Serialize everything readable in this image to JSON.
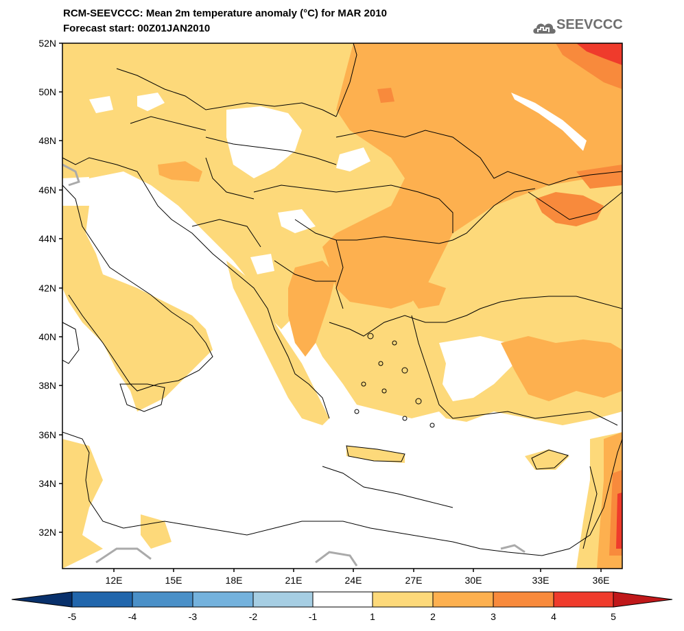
{
  "header": {
    "title_line1": "RCM-SEEVCCC: Mean 2m temperature anomaly (°C) for MAR 2010",
    "title_line2": "Forecast start: 00Z01JAN2010",
    "logo_text": "SEEVCCC",
    "logo_icon": "cloud-icon"
  },
  "map": {
    "lat_labels": [
      "52N",
      "50N",
      "48N",
      "46N",
      "44N",
      "42N",
      "40N",
      "38N",
      "36N",
      "34N",
      "32N"
    ],
    "lon_labels": [
      "12E",
      "15E",
      "18E",
      "21E",
      "24E",
      "27E",
      "30E",
      "33E",
      "36E"
    ],
    "lat_values": [
      52,
      50,
      48,
      46,
      44,
      42,
      40,
      38,
      36,
      34,
      32
    ],
    "lon_values": [
      12,
      15,
      18,
      21,
      24,
      27,
      30,
      33,
      36
    ]
  },
  "colorbar": {
    "labels": [
      "-5",
      "-4",
      "-3",
      "-2",
      "-1",
      "1",
      "2",
      "3",
      "4",
      "5"
    ],
    "colors": [
      "#08306b",
      "#2166ac",
      "#4a90c8",
      "#74b2dd",
      "#a6cee3",
      "#ffffff",
      "#fdd97a",
      "#fdb04f",
      "#f88a3c",
      "#ef3b2c",
      "#c0181a"
    ]
  },
  "colors": {
    "anom_1_2": "#fdd97a",
    "anom_2_3": "#fdb04f",
    "anom_3_4": "#f88a3c",
    "anom_4_5": "#ef3b2c",
    "border": "#000000"
  }
}
